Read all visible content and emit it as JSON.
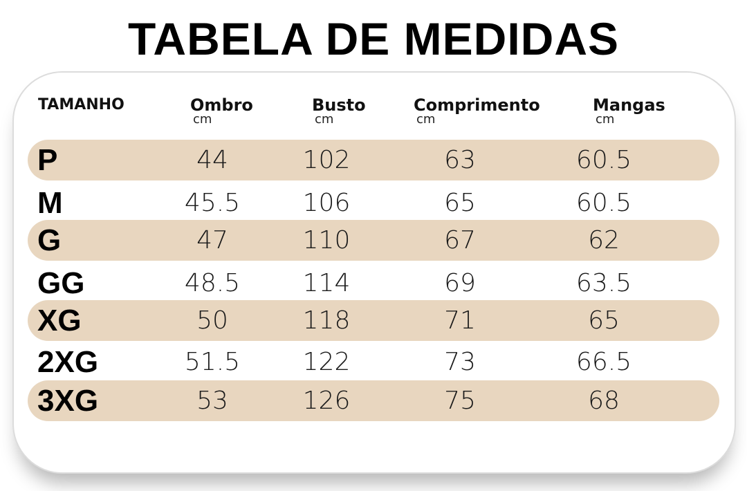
{
  "title": "TABELA DE MEDIDAS",
  "colors": {
    "band": "#e8d6bf",
    "text": "#000000"
  },
  "headers": [
    {
      "label": "TAMANHO",
      "unit": ""
    },
    {
      "label": "Ombro",
      "unit": "cm"
    },
    {
      "label": "Busto",
      "unit": "cm"
    },
    {
      "label": "Comprimento",
      "unit": "cm"
    },
    {
      "label": "Mangas",
      "unit": "cm"
    }
  ],
  "rows": [
    {
      "size": "P",
      "ombro": "44",
      "busto": "102",
      "comprimento": "63",
      "mangas": "60.5"
    },
    {
      "size": "M",
      "ombro": "45.5",
      "busto": "106",
      "comprimento": "65",
      "mangas": "60.5"
    },
    {
      "size": "G",
      "ombro": "47",
      "busto": "110",
      "comprimento": "67",
      "mangas": "62"
    },
    {
      "size": "GG",
      "ombro": "48.5",
      "busto": "114",
      "comprimento": "69",
      "mangas": "63.5"
    },
    {
      "size": "XG",
      "ombro": "50",
      "busto": "118",
      "comprimento": "71",
      "mangas": "65"
    },
    {
      "size": "2XG",
      "ombro": "51.5",
      "busto": "122",
      "comprimento": "73",
      "mangas": "66.5"
    },
    {
      "size": "3XG",
      "ombro": "53",
      "busto": "126",
      "comprimento": "75",
      "mangas": "68"
    }
  ]
}
